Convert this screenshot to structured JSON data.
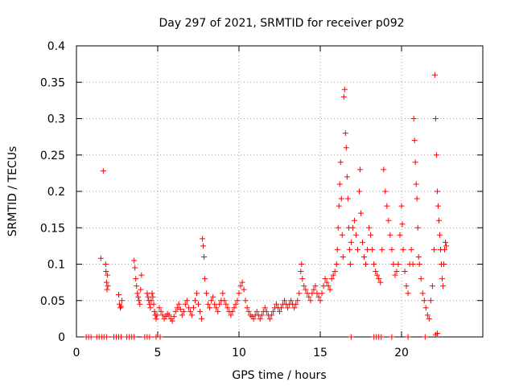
{
  "chart_data": {
    "type": "scatter",
    "title": "Day 297 of 2021, SRMTID for receiver p092",
    "xlabel": "GPS time / hours",
    "ylabel": "SRMTID / TECUs",
    "xlim": [
      0,
      25
    ],
    "ylim": [
      0,
      0.4
    ],
    "x_ticks": [
      0,
      5,
      10,
      15,
      20
    ],
    "y_ticks": [
      0,
      0.05,
      0.1,
      0.15,
      0.2,
      0.25,
      0.3,
      0.35,
      0.4
    ],
    "x_tick_labels": [
      "0",
      "5",
      "10",
      "15",
      "20"
    ],
    "y_tick_labels": [
      "0",
      "0.05",
      "0.1",
      "0.15",
      "0.2",
      "0.25",
      "0.3",
      "0.35",
      "0.4"
    ],
    "grid": true,
    "marker": "+",
    "series": [
      {
        "name": "SRMTID p092",
        "color": "#ff0000",
        "points": [
          [
            0.6,
            0
          ],
          [
            0.75,
            0
          ],
          [
            0.9,
            0
          ],
          [
            1.25,
            0
          ],
          [
            1.4,
            0
          ],
          [
            1.55,
            0
          ],
          [
            1.7,
            0
          ],
          [
            1.85,
            0
          ],
          [
            2.3,
            0
          ],
          [
            2.45,
            0
          ],
          [
            2.6,
            0
          ],
          [
            2.75,
            0
          ],
          [
            3.1,
            0
          ],
          [
            3.25,
            0
          ],
          [
            3.4,
            0
          ],
          [
            3.55,
            0
          ],
          [
            4.2,
            0
          ],
          [
            4.35,
            0
          ],
          [
            4.5,
            0
          ],
          [
            4.9,
            0
          ],
          [
            5.15,
            0
          ],
          [
            16.9,
            0
          ],
          [
            18.3,
            0
          ],
          [
            18.45,
            0
          ],
          [
            18.6,
            0
          ],
          [
            18.75,
            0
          ],
          [
            19.4,
            0
          ],
          [
            20.4,
            0
          ],
          [
            21.45,
            0
          ],
          [
            22.1,
            0.003
          ],
          [
            22.2,
            0.005
          ],
          [
            1.5,
            0.108
          ],
          [
            1.65,
            0.228
          ],
          [
            1.8,
            0.1
          ],
          [
            1.82,
            0.09
          ],
          [
            1.85,
            0.075
          ],
          [
            1.88,
            0.065
          ],
          [
            1.9,
            0.085
          ],
          [
            1.93,
            0.07
          ],
          [
            2.6,
            0.058
          ],
          [
            2.65,
            0.045
          ],
          [
            2.7,
            0.04
          ],
          [
            2.75,
            0.042
          ],
          [
            2.8,
            0.05
          ],
          [
            3.55,
            0.105
          ],
          [
            3.6,
            0.095
          ],
          [
            3.65,
            0.08
          ],
          [
            3.7,
            0.07
          ],
          [
            3.75,
            0.06
          ],
          [
            3.8,
            0.055
          ],
          [
            3.85,
            0.05
          ],
          [
            3.9,
            0.045
          ],
          [
            3.95,
            0.065
          ],
          [
            4.0,
            0.085
          ],
          [
            4.35,
            0.06
          ],
          [
            4.4,
            0.055
          ],
          [
            4.45,
            0.05
          ],
          [
            4.5,
            0.045
          ],
          [
            4.55,
            0.04
          ],
          [
            4.6,
            0.05
          ],
          [
            4.65,
            0.06
          ],
          [
            4.7,
            0.055
          ],
          [
            4.75,
            0.045
          ],
          [
            4.8,
            0.035
          ],
          [
            4.85,
            0.03
          ],
          [
            4.9,
            0.025
          ],
          [
            4.95,
            0.03
          ],
          [
            5.1,
            0.04
          ],
          [
            5.2,
            0.035
          ],
          [
            5.3,
            0.03
          ],
          [
            5.4,
            0.025
          ],
          [
            5.5,
            0.028
          ],
          [
            5.6,
            0.032
          ],
          [
            5.7,
            0.03
          ],
          [
            5.8,
            0.025
          ],
          [
            5.9,
            0.022
          ],
          [
            6.0,
            0.028
          ],
          [
            6.1,
            0.035
          ],
          [
            6.2,
            0.04
          ],
          [
            6.3,
            0.045
          ],
          [
            6.4,
            0.038
          ],
          [
            6.5,
            0.03
          ],
          [
            6.6,
            0.035
          ],
          [
            6.7,
            0.045
          ],
          [
            6.8,
            0.05
          ],
          [
            6.9,
            0.04
          ],
          [
            7.0,
            0.035
          ],
          [
            7.1,
            0.03
          ],
          [
            7.2,
            0.04
          ],
          [
            7.3,
            0.05
          ],
          [
            7.4,
            0.06
          ],
          [
            7.5,
            0.045
          ],
          [
            7.6,
            0.035
          ],
          [
            7.7,
            0.025
          ],
          [
            7.75,
            0.135
          ],
          [
            7.8,
            0.125
          ],
          [
            7.85,
            0.11
          ],
          [
            7.9,
            0.08
          ],
          [
            8.0,
            0.06
          ],
          [
            8.1,
            0.045
          ],
          [
            8.2,
            0.04
          ],
          [
            8.3,
            0.05
          ],
          [
            8.4,
            0.055
          ],
          [
            8.5,
            0.045
          ],
          [
            8.6,
            0.04
          ],
          [
            8.7,
            0.035
          ],
          [
            8.8,
            0.045
          ],
          [
            8.9,
            0.05
          ],
          [
            9.0,
            0.06
          ],
          [
            9.1,
            0.05
          ],
          [
            9.2,
            0.045
          ],
          [
            9.3,
            0.04
          ],
          [
            9.4,
            0.035
          ],
          [
            9.5,
            0.03
          ],
          [
            9.6,
            0.035
          ],
          [
            9.7,
            0.04
          ],
          [
            9.8,
            0.045
          ],
          [
            9.9,
            0.05
          ],
          [
            10.0,
            0.06
          ],
          [
            10.1,
            0.07
          ],
          [
            10.2,
            0.075
          ],
          [
            10.3,
            0.065
          ],
          [
            10.4,
            0.05
          ],
          [
            10.5,
            0.04
          ],
          [
            10.6,
            0.035
          ],
          [
            10.7,
            0.03
          ],
          [
            10.8,
            0.028
          ],
          [
            10.9,
            0.025
          ],
          [
            11.0,
            0.03
          ],
          [
            11.1,
            0.035
          ],
          [
            11.2,
            0.03
          ],
          [
            11.3,
            0.025
          ],
          [
            11.4,
            0.03
          ],
          [
            11.5,
            0.035
          ],
          [
            11.6,
            0.04
          ],
          [
            11.7,
            0.035
          ],
          [
            11.8,
            0.03
          ],
          [
            11.9,
            0.025
          ],
          [
            12.0,
            0.03
          ],
          [
            12.1,
            0.035
          ],
          [
            12.2,
            0.04
          ],
          [
            12.3,
            0.045
          ],
          [
            12.4,
            0.04
          ],
          [
            12.5,
            0.035
          ],
          [
            12.6,
            0.04
          ],
          [
            12.7,
            0.045
          ],
          [
            12.8,
            0.05
          ],
          [
            12.9,
            0.045
          ],
          [
            13.0,
            0.04
          ],
          [
            13.1,
            0.045
          ],
          [
            13.2,
            0.05
          ],
          [
            13.3,
            0.045
          ],
          [
            13.4,
            0.04
          ],
          [
            13.5,
            0.045
          ],
          [
            13.6,
            0.05
          ],
          [
            13.7,
            0.06
          ],
          [
            13.8,
            0.09
          ],
          [
            13.85,
            0.1
          ],
          [
            13.9,
            0.08
          ],
          [
            14.0,
            0.07
          ],
          [
            14.1,
            0.065
          ],
          [
            14.2,
            0.06
          ],
          [
            14.3,
            0.055
          ],
          [
            14.4,
            0.05
          ],
          [
            14.5,
            0.06
          ],
          [
            14.6,
            0.065
          ],
          [
            14.7,
            0.07
          ],
          [
            14.8,
            0.06
          ],
          [
            14.9,
            0.055
          ],
          [
            15.0,
            0.05
          ],
          [
            15.1,
            0.06
          ],
          [
            15.2,
            0.07
          ],
          [
            15.3,
            0.08
          ],
          [
            15.4,
            0.075
          ],
          [
            15.5,
            0.07
          ],
          [
            15.6,
            0.065
          ],
          [
            15.7,
            0.08
          ],
          [
            15.8,
            0.085
          ],
          [
            15.9,
            0.09
          ],
          [
            16.0,
            0.1
          ],
          [
            16.05,
            0.12
          ],
          [
            16.1,
            0.15
          ],
          [
            16.15,
            0.18
          ],
          [
            16.2,
            0.21
          ],
          [
            16.25,
            0.24
          ],
          [
            16.3,
            0.19
          ],
          [
            16.35,
            0.14
          ],
          [
            16.4,
            0.11
          ],
          [
            16.45,
            0.33
          ],
          [
            16.5,
            0.34
          ],
          [
            16.55,
            0.28
          ],
          [
            16.6,
            0.26
          ],
          [
            16.65,
            0.22
          ],
          [
            16.7,
            0.19
          ],
          [
            16.75,
            0.15
          ],
          [
            16.8,
            0.12
          ],
          [
            16.85,
            0.1
          ],
          [
            16.9,
            0.13
          ],
          [
            17.0,
            0.15
          ],
          [
            17.1,
            0.16
          ],
          [
            17.2,
            0.14
          ],
          [
            17.3,
            0.12
          ],
          [
            17.4,
            0.2
          ],
          [
            17.45,
            0.23
          ],
          [
            17.5,
            0.17
          ],
          [
            17.6,
            0.13
          ],
          [
            17.7,
            0.11
          ],
          [
            17.8,
            0.1
          ],
          [
            17.9,
            0.12
          ],
          [
            18.0,
            0.15
          ],
          [
            18.1,
            0.14
          ],
          [
            18.2,
            0.12
          ],
          [
            18.3,
            0.1
          ],
          [
            18.4,
            0.09
          ],
          [
            18.5,
            0.085
          ],
          [
            18.6,
            0.08
          ],
          [
            18.7,
            0.075
          ],
          [
            18.8,
            0.12
          ],
          [
            18.9,
            0.23
          ],
          [
            19.0,
            0.2
          ],
          [
            19.1,
            0.18
          ],
          [
            19.2,
            0.16
          ],
          [
            19.3,
            0.14
          ],
          [
            19.4,
            0.12
          ],
          [
            19.5,
            0.1
          ],
          [
            19.6,
            0.085
          ],
          [
            19.7,
            0.09
          ],
          [
            19.8,
            0.1
          ],
          [
            19.9,
            0.14
          ],
          [
            20.0,
            0.18
          ],
          [
            20.05,
            0.155
          ],
          [
            20.1,
            0.12
          ],
          [
            20.2,
            0.09
          ],
          [
            20.3,
            0.07
          ],
          [
            20.4,
            0.06
          ],
          [
            20.5,
            0.1
          ],
          [
            20.6,
            0.12
          ],
          [
            20.7,
            0.1
          ],
          [
            20.75,
            0.3
          ],
          [
            20.8,
            0.27
          ],
          [
            20.85,
            0.24
          ],
          [
            20.9,
            0.21
          ],
          [
            20.95,
            0.19
          ],
          [
            21.0,
            0.15
          ],
          [
            21.05,
            0.11
          ],
          [
            21.1,
            0.1
          ],
          [
            21.2,
            0.08
          ],
          [
            21.3,
            0.06
          ],
          [
            21.4,
            0.05
          ],
          [
            21.5,
            0.04
          ],
          [
            21.6,
            0.03
          ],
          [
            21.7,
            0.025
          ],
          [
            21.8,
            0.05
          ],
          [
            21.9,
            0.07
          ],
          [
            22.0,
            0.12
          ],
          [
            22.05,
            0.36
          ],
          [
            22.1,
            0.3
          ],
          [
            22.15,
            0.25
          ],
          [
            22.2,
            0.2
          ],
          [
            22.25,
            0.18
          ],
          [
            22.3,
            0.16
          ],
          [
            22.35,
            0.14
          ],
          [
            22.4,
            0.12
          ],
          [
            22.45,
            0.1
          ],
          [
            22.5,
            0.08
          ],
          [
            22.55,
            0.07
          ],
          [
            22.6,
            0.1
          ],
          [
            22.65,
            0.12
          ],
          [
            22.7,
            0.13
          ],
          [
            22.75,
            0.125
          ]
        ]
      }
    ]
  }
}
